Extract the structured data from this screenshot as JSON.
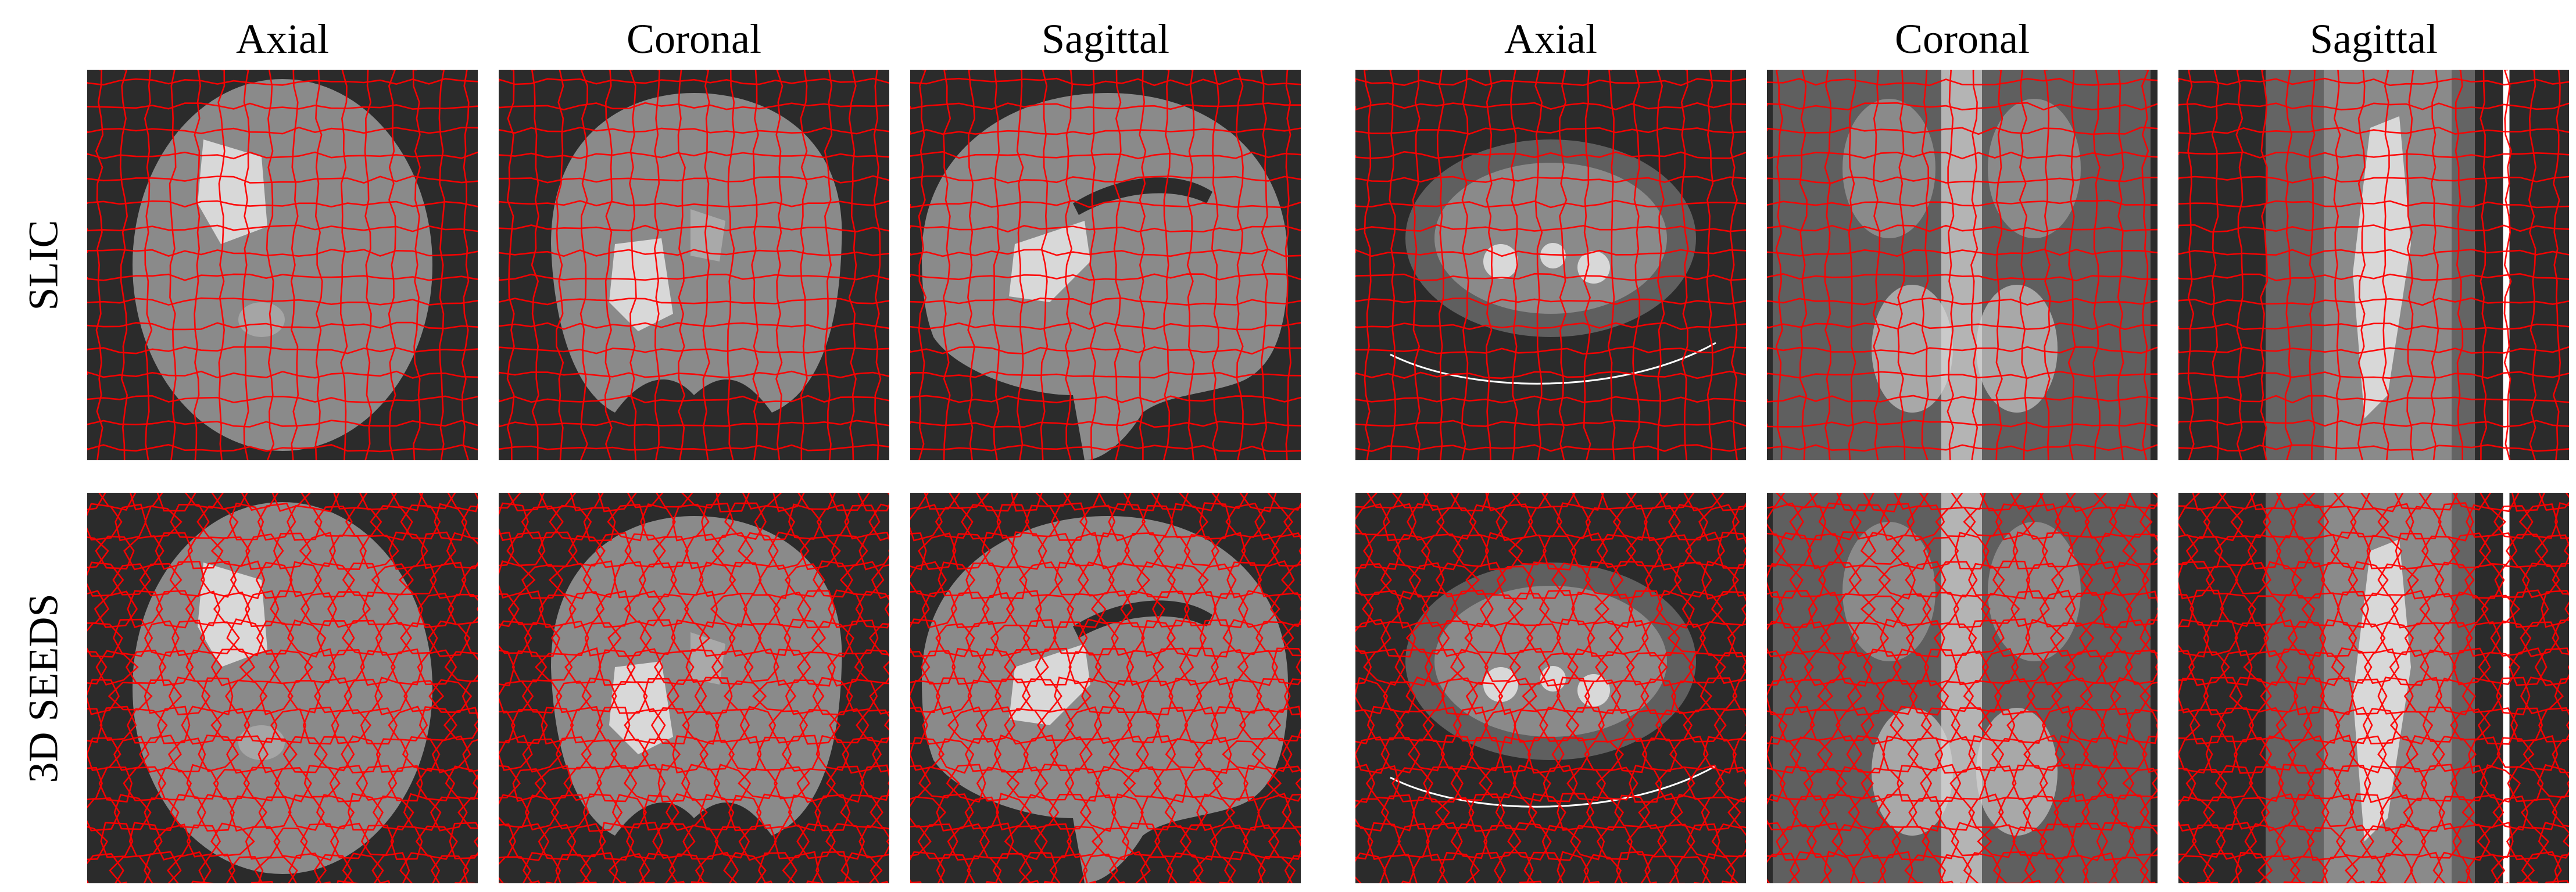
{
  "column_titles": [
    "Axial",
    "Coronal",
    "Sagittal",
    "Axial",
    "Coronal",
    "Sagittal"
  ],
  "row_labels": [
    "SLIC",
    "3D SEEDS"
  ],
  "colors": {
    "background": "#2b2b2b",
    "tissue": "#8a8a8a",
    "bright": "#d8d8d8",
    "boundary": "#ff0000"
  },
  "panels": [
    {
      "row": "SLIC",
      "column": "Axial",
      "subject": "brain-mri",
      "method": "slic"
    },
    {
      "row": "SLIC",
      "column": "Coronal",
      "subject": "brain-mri",
      "method": "slic"
    },
    {
      "row": "SLIC",
      "column": "Sagittal",
      "subject": "brain-mri",
      "method": "slic"
    },
    {
      "row": "SLIC",
      "column": "Axial",
      "subject": "abdomen-ct",
      "method": "slic"
    },
    {
      "row": "SLIC",
      "column": "Coronal",
      "subject": "abdomen-ct",
      "method": "slic"
    },
    {
      "row": "SLIC",
      "column": "Sagittal",
      "subject": "abdomen-ct",
      "method": "slic"
    },
    {
      "row": "3D SEEDS",
      "column": "Axial",
      "subject": "brain-mri",
      "method": "seeds"
    },
    {
      "row": "3D SEEDS",
      "column": "Coronal",
      "subject": "brain-mri",
      "method": "seeds"
    },
    {
      "row": "3D SEEDS",
      "column": "Sagittal",
      "subject": "brain-mri",
      "method": "seeds"
    },
    {
      "row": "3D SEEDS",
      "column": "Axial",
      "subject": "abdomen-ct",
      "method": "seeds"
    },
    {
      "row": "3D SEEDS",
      "column": "Coronal",
      "subject": "abdomen-ct",
      "method": "seeds"
    },
    {
      "row": "3D SEEDS",
      "column": "Sagittal",
      "subject": "abdomen-ct",
      "method": "seeds"
    }
  ]
}
